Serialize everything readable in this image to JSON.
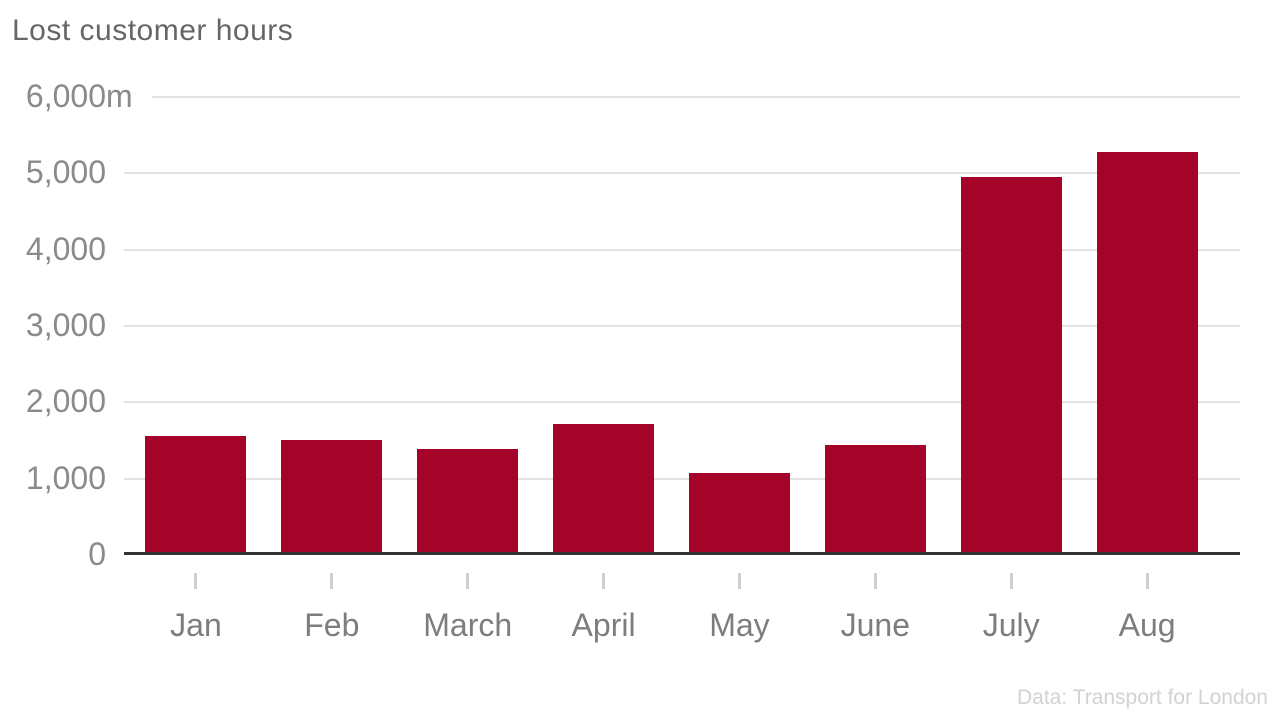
{
  "chart_data": {
    "type": "bar",
    "title": "Lost customer hours",
    "categories": [
      "Jan",
      "Feb",
      "March",
      "April",
      "May",
      "June",
      "July",
      "Aug"
    ],
    "values": [
      1530,
      1490,
      1360,
      1700,
      1050,
      1420,
      4930,
      5260
    ],
    "xlabel": "",
    "ylabel": "",
    "ylim": [
      0,
      6000
    ],
    "ytick_step": 1000,
    "ytick_labels": [
      "0",
      "1,000",
      "2,000",
      "3,000",
      "4,000",
      "5,000",
      "6,000"
    ],
    "ytick_top_unit": "m",
    "grid": "horizontal",
    "legend": "none",
    "bar_color": "#a50329"
  },
  "attribution": {
    "text": "Data: Transport for London"
  },
  "colors": {
    "background": "#ffffff",
    "bar": "#a50329",
    "gridline": "#e3e3e3",
    "baseline": "#333333",
    "title_text": "#666666",
    "ytick_text": "#8a8a8a",
    "xtick_text": "#7d7d7d",
    "tick_mark": "#cfcfcf",
    "attribution_text": "#d2d2d2"
  }
}
